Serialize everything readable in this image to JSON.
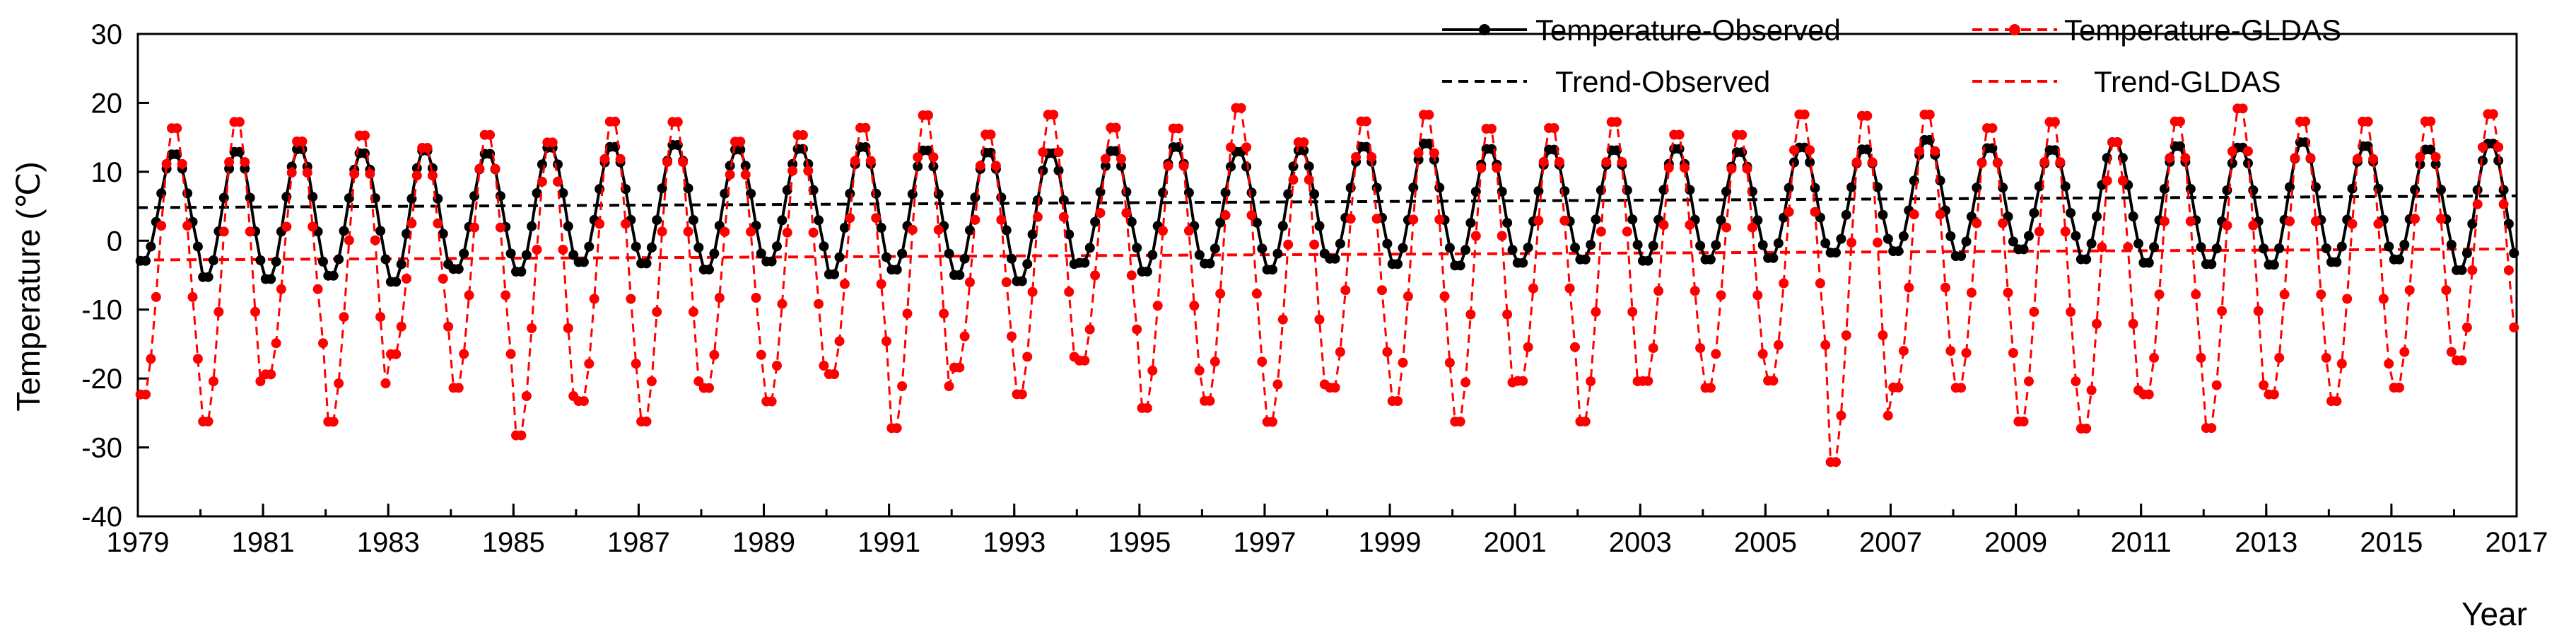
{
  "chart_data": {
    "type": "line",
    "title": "",
    "xlabel": "Year",
    "ylabel": "Temperature (℃)",
    "xlim": [
      1979,
      2017
    ],
    "ylim": [
      -40,
      30
    ],
    "x_ticks": [
      "1979",
      "1981",
      "1983",
      "1985",
      "1987",
      "1989",
      "1991",
      "1993",
      "1995",
      "1997",
      "1999",
      "2001",
      "2003",
      "2005",
      "2007",
      "2009",
      "2011",
      "2013",
      "2015",
      "2017"
    ],
    "y_ticks": [
      "-40",
      "-30",
      "-20",
      "-10",
      "0",
      "10",
      "20",
      "30"
    ],
    "legend_position": "top-right",
    "series": [
      {
        "name": "Temperature-Observed",
        "color": "#000000",
        "style": "solid-with-markers",
        "frequency": "monthly",
        "start_year": 1979,
        "months": 456,
        "mean": 5.5,
        "seasonal_amplitude": 9.2,
        "typical_peak": 13.5,
        "typical_trough": -4.0,
        "annual_peaks": [
          12.8,
          13.2,
          13.6,
          13.0,
          13.4,
          12.9,
          13.8,
          13.9,
          14.2,
          13.5,
          13.6,
          13.9,
          13.4,
          13.1,
          13.0,
          13.3,
          13.9,
          13.2,
          13.4,
          13.9,
          14.4,
          13.6,
          13.5,
          13.4,
          13.6,
          13.1,
          13.8,
          13.5,
          14.9,
          13.7,
          13.4,
          14.6,
          14.0,
          13.8,
          14.6,
          14.0,
          13.5,
          14.4
        ],
        "annual_troughs": [
          -3.2,
          -5.6,
          -5.9,
          -5.4,
          -6.3,
          -4.4,
          -4.8,
          -3.4,
          -3.6,
          -4.5,
          -3.3,
          -5.2,
          -4.5,
          -5.3,
          -6.2,
          -3.5,
          -4.8,
          -3.6,
          -4.5,
          -2.9,
          -3.7,
          -3.9,
          -3.5,
          -3.0,
          -3.2,
          -3.0,
          -2.8,
          -2.0,
          -1.8,
          -2.5,
          -1.5,
          -3.0,
          -3.5,
          -3.7,
          -3.8,
          -3.4,
          -3.0,
          -4.6
        ]
      },
      {
        "name": "Temperature-GLDAS",
        "color": "#ff0000",
        "style": "dashed-with-markers",
        "frequency": "monthly",
        "start_year": 1979,
        "months": 456,
        "mean": -2.0,
        "seasonal_amplitude": 20.0,
        "typical_peak": 17.0,
        "typical_trough": -22.0,
        "annual_peaks": [
          17.0,
          18.0,
          15.0,
          16.0,
          14.0,
          16.0,
          15.0,
          18.0,
          18.0,
          15.0,
          16.0,
          17.0,
          19.0,
          16.0,
          19.0,
          17.0,
          17.0,
          20.0,
          15.0,
          18.0,
          19.0,
          17.0,
          17.0,
          18.0,
          16.0,
          16.0,
          19.0,
          19.0,
          19.0,
          17.0,
          18.0,
          15.0,
          18.0,
          20.0,
          18.0,
          18.0,
          18.0,
          19.0
        ],
        "annual_troughs": [
          -23.0,
          -27.0,
          -20.0,
          -27.0,
          -17.0,
          -22.0,
          -29.0,
          -24.0,
          -27.0,
          -22.0,
          -24.0,
          -20.0,
          -28.0,
          -19.0,
          -23.0,
          -18.0,
          -25.0,
          -24.0,
          -27.0,
          -22.0,
          -24.0,
          -27.0,
          -21.0,
          -27.0,
          -21.0,
          -22.0,
          -21.0,
          -33.0,
          -22.0,
          -22.0,
          -27.0,
          -28.0,
          -23.0,
          -28.0,
          -23.0,
          -24.0,
          -22.0,
          -18.0
        ]
      },
      {
        "name": "Trend-Observed",
        "color": "#000000",
        "style": "dashed",
        "x": [
          1979,
          2017
        ],
        "values": [
          4.8,
          6.5
        ]
      },
      {
        "name": "Trend-GLDAS",
        "color": "#ff0000",
        "style": "dashed",
        "x": [
          1979,
          2017
        ],
        "values": [
          -2.8,
          -1.2
        ]
      }
    ]
  }
}
